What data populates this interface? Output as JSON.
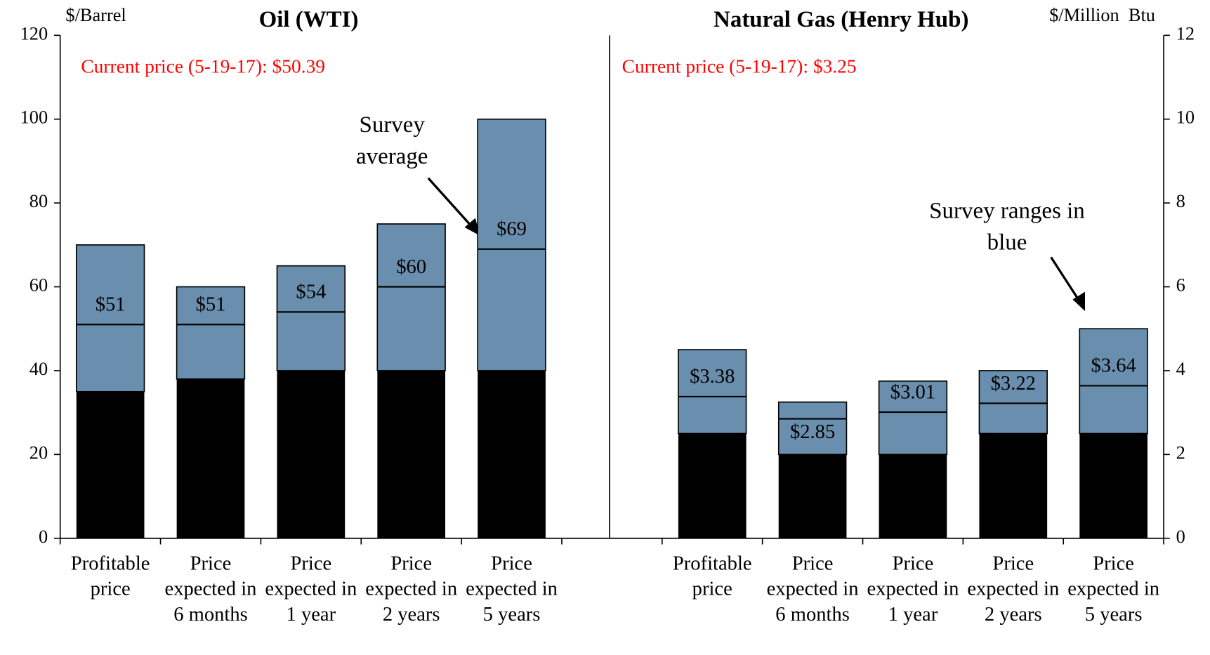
{
  "chart_data": [
    {
      "type": "range-bar",
      "title": "Oil (WTI)",
      "y_label": "$/Barrel",
      "current_price_note": "Current price (5-19-17): $50.39",
      "annotation": "Survey average",
      "categories": [
        "Profitable price",
        "Price expected in 6 months",
        "Price expected in 1 year",
        "Price expected in 2 years",
        "Price expected in 5 years"
      ],
      "low": [
        35,
        38,
        40,
        40,
        40
      ],
      "high": [
        70,
        60,
        65,
        75,
        100
      ],
      "average": [
        51,
        51,
        54,
        60,
        69
      ],
      "value_labels": [
        "$51",
        "$51",
        "$54",
        "$60",
        "$69"
      ],
      "low_color": "#000000",
      "range_color": "#6a8fae",
      "ylim": [
        0,
        120
      ],
      "yticks": [
        0,
        20,
        40,
        60,
        80,
        100,
        120
      ]
    },
    {
      "type": "range-bar",
      "title": "Natural Gas (Henry Hub)",
      "y_label": "$/Million  Btu",
      "current_price_note": "Current price (5-19-17): $3.25",
      "annotation": "Survey ranges in blue",
      "categories": [
        "Profitable price",
        "Price expected in 6 months",
        "Price expected in 1 year",
        "Price expected in 2 years",
        "Price expected in 5 years"
      ],
      "low": [
        2.5,
        2,
        2,
        2.5,
        2.5
      ],
      "high": [
        4.5,
        3.25,
        3.75,
        4,
        5
      ],
      "average": [
        3.38,
        2.85,
        3.01,
        3.22,
        3.64
      ],
      "value_labels": [
        "$3.38",
        "$2.85",
        "$3.01",
        "$3.22",
        "$3.64"
      ],
      "low_color": "#000000",
      "range_color": "#6a8fae",
      "ylim": [
        0,
        12
      ],
      "yticks": [
        0,
        2,
        4,
        6,
        8,
        10,
        12
      ]
    }
  ]
}
